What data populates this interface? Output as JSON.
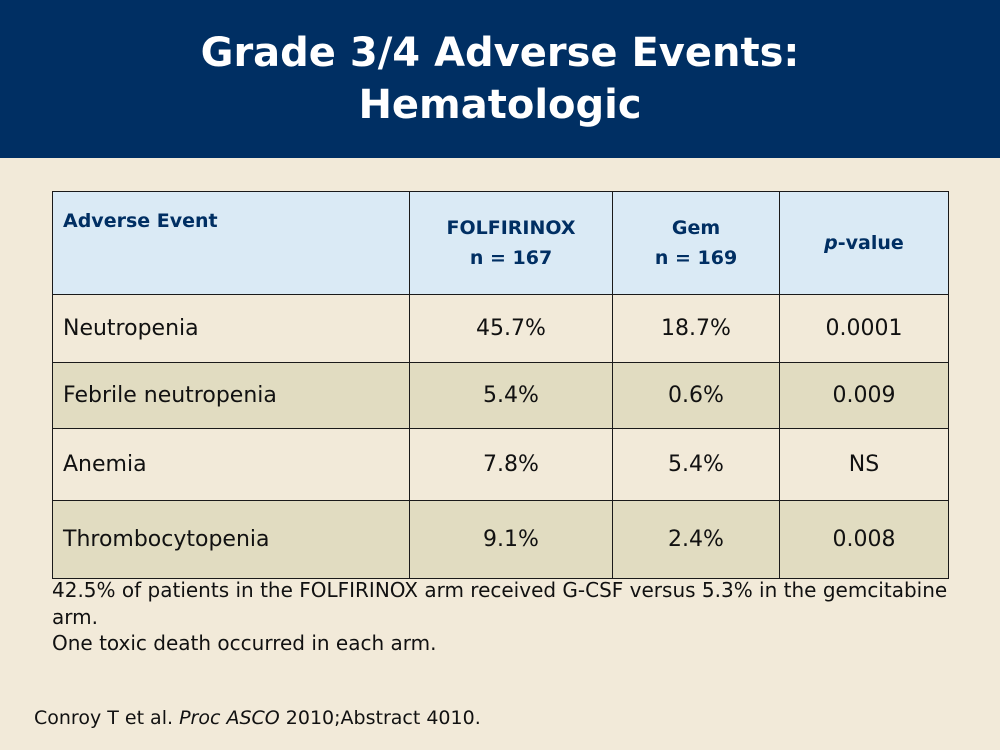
{
  "slide": {
    "title": "Grade 3/4 Adverse Events: Hematologic"
  },
  "table": {
    "header": {
      "event": "Adverse Event",
      "folfirinox_name": "FOLFIRINOX",
      "folfirinox_n": "n = 167",
      "gem_name": "Gem",
      "gem_n": "n = 169",
      "p_italic": "p",
      "p_suffix": "-value"
    },
    "rows": [
      {
        "event": "Neutropenia",
        "folfirinox": "45.7%",
        "gem": "18.7%",
        "p": "0.0001"
      },
      {
        "event": "Febrile neutropenia",
        "folfirinox": "5.4%",
        "gem": "0.6%",
        "p": "0.009"
      },
      {
        "event": "Anemia",
        "folfirinox": "7.8%",
        "gem": "5.4%",
        "p": "NS"
      },
      {
        "event": "Thrombocytopenia",
        "folfirinox": "9.1%",
        "gem": "2.4%",
        "p": "0.008"
      }
    ]
  },
  "notes": [
    "42.5% of patients in the FOLFIRINOX arm received G-CSF versus 5.3% in the gemcitabine arm.",
    "One toxic death occurred in each arm."
  ],
  "citation": {
    "authors": "Conroy T et al.",
    "journal": "Proc ASCO",
    "detail": "2010;Abstract 4010."
  },
  "colors": {
    "title_bg": "#002f63",
    "header_bg": "#daeaf5",
    "row_light": "#f2ead9",
    "row_dark": "#e1dcc1"
  }
}
